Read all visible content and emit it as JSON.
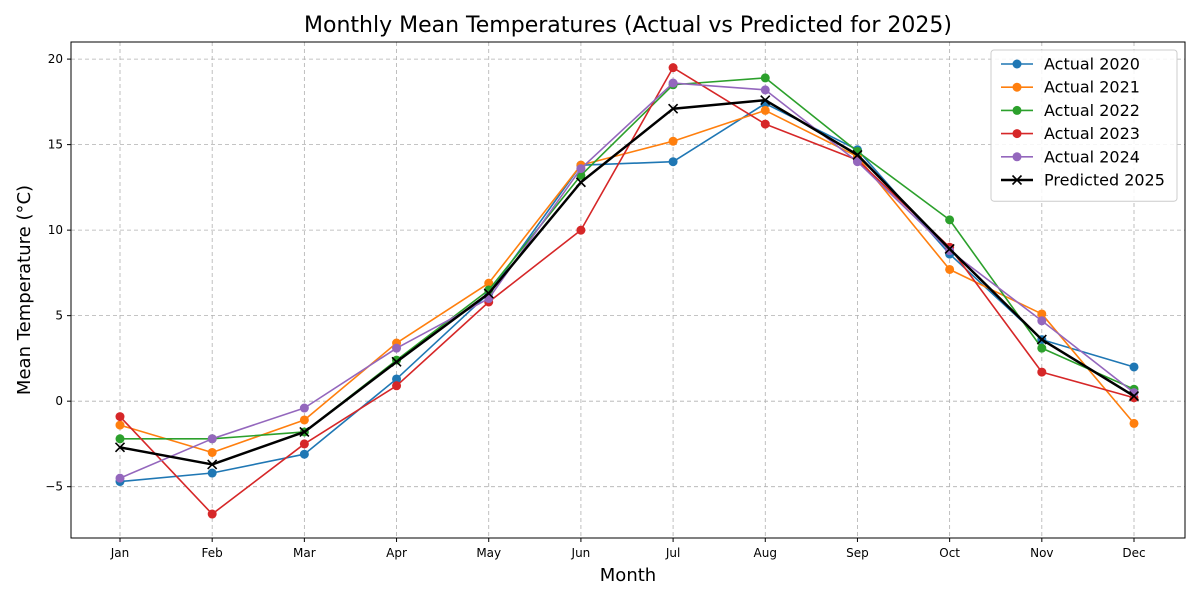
{
  "chart_data": {
    "type": "line",
    "title": "Monthly Mean Temperatures (Actual vs Predicted for 2025)",
    "xlabel": "Month",
    "ylabel": "Mean Temperature (°C)",
    "categories": [
      "Jan",
      "Feb",
      "Mar",
      "Apr",
      "May",
      "Jun",
      "Jul",
      "Aug",
      "Sep",
      "Oct",
      "Nov",
      "Dec"
    ],
    "ylim": [
      -8,
      21
    ],
    "yticks": [
      -5,
      0,
      5,
      10,
      15,
      20
    ],
    "grid": true,
    "legend_position": "top-right",
    "series": [
      {
        "name": "Actual 2020",
        "color": "#1f77b4",
        "marker": "circle",
        "values": [
          -4.7,
          -4.2,
          -3.1,
          1.3,
          6.3,
          13.8,
          14.0,
          17.4,
          14.7,
          8.6,
          3.6,
          2.0
        ]
      },
      {
        "name": "Actual 2021",
        "color": "#ff7f0e",
        "marker": "circle",
        "values": [
          -1.4,
          -3.0,
          -1.1,
          3.4,
          6.9,
          13.8,
          15.2,
          17.0,
          14.3,
          7.7,
          5.1,
          -1.3
        ]
      },
      {
        "name": "Actual 2022",
        "color": "#2ca02c",
        "marker": "circle",
        "values": [
          -2.2,
          -2.2,
          -1.8,
          2.4,
          6.5,
          13.2,
          18.5,
          18.9,
          14.6,
          10.6,
          3.1,
          0.7
        ]
      },
      {
        "name": "Actual 2023",
        "color": "#d62728",
        "marker": "circle",
        "values": [
          -0.9,
          -6.6,
          -2.5,
          0.9,
          5.8,
          10.0,
          19.5,
          16.2,
          14.1,
          9.0,
          1.7,
          0.2
        ]
      },
      {
        "name": "Actual 2024",
        "color": "#9467bd",
        "marker": "circle",
        "values": [
          -4.5,
          -2.2,
          -0.4,
          3.1,
          6.0,
          13.6,
          18.6,
          18.2,
          14.0,
          8.8,
          4.7,
          0.5
        ]
      },
      {
        "name": "Predicted 2025",
        "color": "#000000",
        "marker": "x",
        "values": [
          -2.7,
          -3.7,
          -1.8,
          2.3,
          6.3,
          12.8,
          17.1,
          17.6,
          14.4,
          8.9,
          3.6,
          0.3
        ]
      }
    ]
  }
}
